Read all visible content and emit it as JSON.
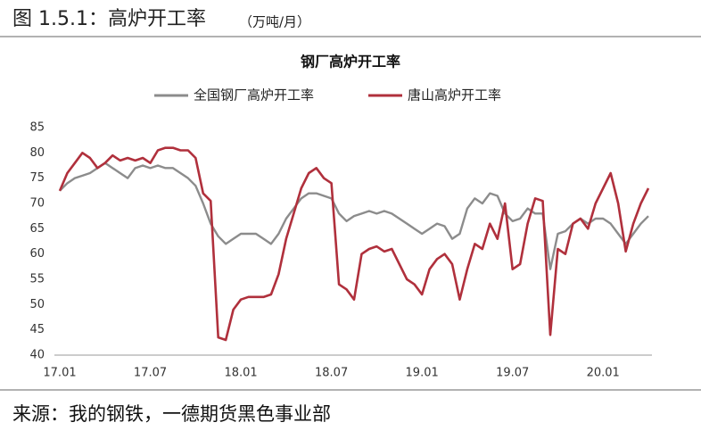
{
  "header": {
    "title": "图 1.5.1：高炉开工率",
    "unit": "（万吨/月）"
  },
  "chart_data": {
    "type": "line",
    "title": "钢厂高炉开工率",
    "categories": [
      "17.01",
      null,
      null,
      null,
      null,
      null,
      null,
      null,
      null,
      null,
      null,
      null,
      "17.07",
      null,
      null,
      null,
      null,
      null,
      null,
      null,
      null,
      null,
      null,
      null,
      "18.01",
      null,
      null,
      null,
      null,
      null,
      null,
      null,
      null,
      null,
      null,
      null,
      "18.07",
      null,
      null,
      null,
      null,
      null,
      null,
      null,
      null,
      null,
      null,
      null,
      "19.01",
      null,
      null,
      null,
      null,
      null,
      null,
      null,
      null,
      null,
      null,
      null,
      "19.07",
      null,
      null,
      null,
      null,
      null,
      null,
      null,
      null,
      null,
      null,
      null,
      "20.01",
      null,
      null,
      null,
      null,
      null,
      null
    ],
    "series": [
      {
        "name": "全国钢厂高炉开工率",
        "color": "#8c8c8c",
        "values": [
          72.5,
          74,
          75,
          75.5,
          76,
          77,
          78,
          77,
          76,
          75,
          77,
          77.5,
          77,
          77.5,
          77,
          77,
          76,
          75,
          73.5,
          70,
          66,
          63.5,
          62,
          63,
          64,
          64,
          64,
          63,
          62,
          64,
          67,
          69,
          71,
          72,
          72,
          71.5,
          71,
          68,
          66.5,
          67.5,
          68,
          68.5,
          68,
          68.5,
          68,
          67,
          66,
          65,
          64,
          65,
          66,
          65.5,
          63,
          64,
          69,
          71,
          70,
          72,
          71.5,
          68,
          66.5,
          67,
          69,
          68,
          68,
          57,
          64,
          64.5,
          66,
          67,
          66,
          67,
          67,
          66,
          64,
          62,
          64,
          66,
          67.5
        ]
      },
      {
        "name": "唐山高炉开工率",
        "color": "#b0303c",
        "values": [
          72.5,
          76,
          78,
          80,
          79,
          77,
          78,
          79.5,
          78.5,
          79,
          78.5,
          79,
          78,
          80.5,
          81,
          81,
          80.5,
          80.5,
          79,
          72,
          70.5,
          43.5,
          43,
          49,
          51,
          51.5,
          51.5,
          51.5,
          52,
          56,
          63,
          68,
          73,
          76,
          77,
          75,
          74,
          54,
          53,
          51,
          60,
          61,
          61.5,
          60.5,
          61,
          58,
          55,
          54,
          52,
          57,
          59,
          60,
          58,
          51,
          57,
          62,
          61,
          66,
          63,
          70,
          57,
          58,
          66,
          71,
          70.5,
          44,
          61,
          60,
          66,
          67,
          65,
          70,
          73,
          76,
          70,
          60.5,
          66,
          70,
          73
        ]
      }
    ],
    "ylim": [
      40,
      85
    ],
    "yticks": [
      40,
      45,
      50,
      55,
      60,
      65,
      70,
      75,
      80,
      85
    ],
    "legend": "top"
  },
  "source": "来源：我的钢铁，一德期货黑色事业部"
}
